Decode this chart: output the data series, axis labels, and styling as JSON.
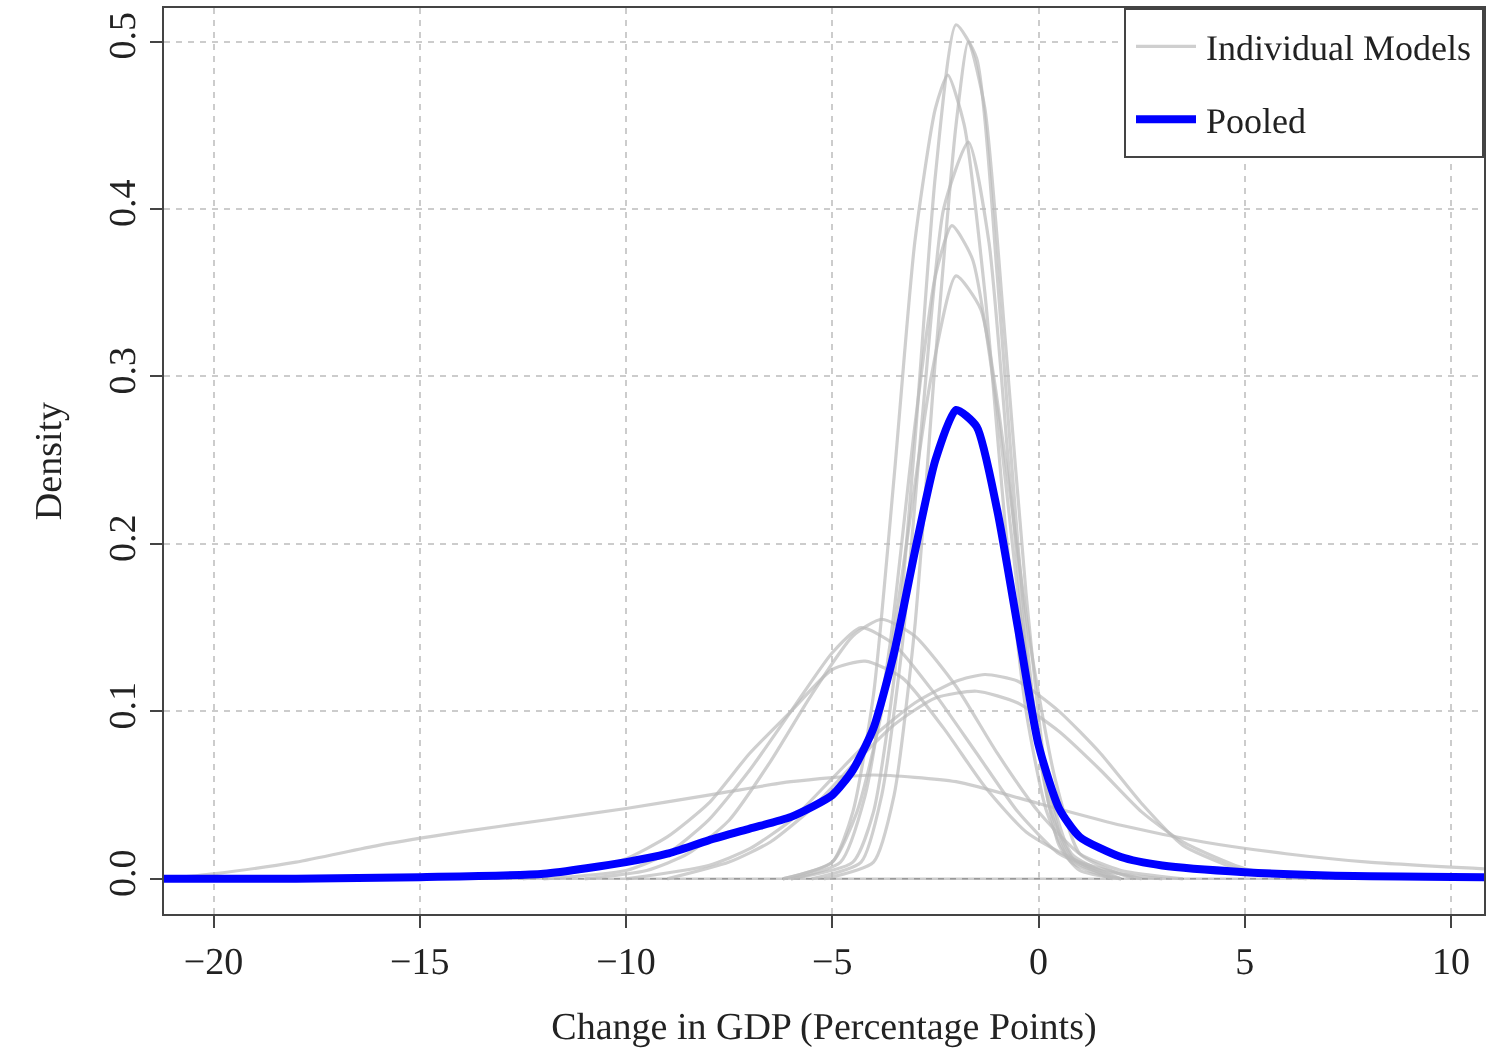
{
  "chart_data": {
    "type": "line",
    "xlabel": "Change in GDP (Percentage Points)",
    "ylabel": "Density",
    "xlim": [
      -21.2,
      10.8
    ],
    "xticks": [
      {
        "value": -20,
        "label": "−20"
      },
      {
        "value": -15,
        "label": "−15"
      },
      {
        "value": -10,
        "label": "−10"
      },
      {
        "value": -5,
        "label": "−5"
      },
      0,
      5,
      10
    ],
    "ylim": [
      -0.021,
      0.52
    ],
    "yticks": [
      {
        "value": 0,
        "label": "0.0"
      },
      0.1,
      0.2,
      0.3,
      0.4,
      0.5
    ],
    "grid": true,
    "legend": "top right",
    "marker": "none",
    "line_style": "solid",
    "ref_lines": [
      {
        "axis": "y",
        "value": 0,
        "color": "#999999"
      }
    ],
    "series": [
      {
        "name": "Individual Models",
        "color": "#bbbbbb",
        "x": [
          -6,
          -4.5,
          -4,
          -3.5,
          -3,
          -2.5,
          -2,
          -1.5,
          -1,
          -0.5,
          0,
          0.5,
          1,
          2
        ],
        "values": [
          0,
          0.01,
          0.04,
          0.12,
          0.26,
          0.42,
          0.51,
          0.49,
          0.36,
          0.2,
          0.08,
          0.02,
          0.005,
          0
        ]
      },
      {
        "color": "#bbbbbb",
        "x": [
          -6.2,
          -5,
          -4.5,
          -4,
          -3.5,
          -3,
          -2.5,
          -2.2,
          -1.8,
          -1.3,
          -0.8,
          -0.3,
          0.2,
          0.8,
          1.8
        ],
        "values": [
          0,
          0.01,
          0.04,
          0.11,
          0.24,
          0.38,
          0.46,
          0.48,
          0.45,
          0.35,
          0.21,
          0.1,
          0.04,
          0.01,
          0
        ]
      },
      {
        "color": "#bbbbbb",
        "x": [
          -5.5,
          -4.3,
          -3.8,
          -3.3,
          -2.8,
          -2.3,
          -1.7,
          -1.2,
          -0.7,
          -0.2,
          0.3,
          0.9,
          2
        ],
        "values": [
          0,
          0.01,
          0.05,
          0.14,
          0.28,
          0.4,
          0.44,
          0.38,
          0.24,
          0.11,
          0.04,
          0.01,
          0
        ]
      },
      {
        "color": "#bbbbbb",
        "x": [
          -6,
          -4.8,
          -4.2,
          -3.6,
          -3,
          -2.5,
          -2.1,
          -1.6,
          -1,
          -0.4,
          0.2,
          0.8,
          2
        ],
        "values": [
          0,
          0.01,
          0.05,
          0.14,
          0.27,
          0.36,
          0.39,
          0.37,
          0.28,
          0.15,
          0.06,
          0.015,
          0
        ]
      },
      {
        "color": "#bbbbbb",
        "x": [
          -5.2,
          -4,
          -3.5,
          -3,
          -2.5,
          -2,
          -1.7,
          -1.3,
          -0.8,
          -0.3,
          0.2,
          0.7,
          1.8
        ],
        "values": [
          0,
          0.01,
          0.05,
          0.15,
          0.31,
          0.45,
          0.5,
          0.46,
          0.32,
          0.17,
          0.06,
          0.015,
          0
        ]
      },
      {
        "color": "#bbbbbb",
        "x": [
          -6.2,
          -5,
          -4.4,
          -3.8,
          -3.2,
          -2.6,
          -2,
          -1.4,
          -0.8,
          -0.2,
          0.4,
          1,
          2.3
        ],
        "values": [
          0,
          0.01,
          0.04,
          0.1,
          0.2,
          0.3,
          0.36,
          0.34,
          0.25,
          0.14,
          0.06,
          0.015,
          0
        ]
      },
      {
        "color": "#bbbbbb",
        "x": [
          -12,
          -10,
          -9,
          -8,
          -7,
          -6,
          -5,
          -4.3,
          -3.5,
          -2.5,
          -1.5,
          -0.5,
          0.5,
          1.5,
          3
        ],
        "values": [
          0,
          0.005,
          0.015,
          0.035,
          0.065,
          0.1,
          0.135,
          0.15,
          0.14,
          0.11,
          0.075,
          0.04,
          0.015,
          0.005,
          0
        ]
      },
      {
        "color": "#bbbbbb",
        "x": [
          -11,
          -9.5,
          -8.5,
          -7.5,
          -6.5,
          -5.5,
          -4.5,
          -3.8,
          -3,
          -2,
          -1,
          0,
          1,
          2,
          3.5
        ],
        "values": [
          0,
          0.005,
          0.015,
          0.035,
          0.07,
          0.11,
          0.145,
          0.155,
          0.145,
          0.115,
          0.075,
          0.04,
          0.015,
          0.005,
          0
        ]
      },
      {
        "color": "#bbbbbb",
        "x": [
          -12.5,
          -11,
          -10,
          -9,
          -8,
          -7,
          -6,
          -5,
          -4.2,
          -3.3,
          -2.3,
          -1.3,
          -0.3,
          1,
          2.5
        ],
        "values": [
          0,
          0.005,
          0.012,
          0.025,
          0.045,
          0.075,
          0.1,
          0.125,
          0.13,
          0.12,
          0.09,
          0.055,
          0.028,
          0.01,
          0
        ]
      },
      {
        "color": "#bbbbbb",
        "x": [
          -10,
          -8,
          -7,
          -6,
          -5,
          -4,
          -3,
          -2,
          -1.3,
          -0.5,
          0.5,
          1.5,
          2.5,
          3.5,
          5
        ],
        "values": [
          0,
          0.008,
          0.018,
          0.035,
          0.06,
          0.085,
          0.105,
          0.118,
          0.122,
          0.118,
          0.1,
          0.075,
          0.045,
          0.02,
          0.004
        ]
      },
      {
        "color": "#bbbbbb",
        "x": [
          -9,
          -7.5,
          -6.5,
          -5.5,
          -4.5,
          -3.5,
          -2.5,
          -1.5,
          -0.5,
          0.5,
          1.5,
          2.5,
          3.5,
          5,
          6.5
        ],
        "values": [
          0,
          0.01,
          0.022,
          0.042,
          0.068,
          0.092,
          0.108,
          0.112,
          0.105,
          0.088,
          0.065,
          0.04,
          0.022,
          0.006,
          0
        ]
      },
      {
        "color": "#bbbbbb",
        "x": [
          -21.2,
          -20,
          -18,
          -16,
          -14,
          -12,
          -10,
          -8,
          -6,
          -4,
          -2,
          0,
          2,
          4,
          6,
          8,
          10.8
        ],
        "values": [
          0,
          0.003,
          0.01,
          0.02,
          0.028,
          0.035,
          0.042,
          0.05,
          0.058,
          0.062,
          0.058,
          0.045,
          0.032,
          0.022,
          0.015,
          0.01,
          0.006
        ]
      },
      {
        "name": "Pooled",
        "color": "#0000ff",
        "x": [
          -21.2,
          -18,
          -15,
          -12,
          -10,
          -9,
          -8,
          -7,
          -6,
          -5,
          -4.5,
          -4,
          -3.5,
          -3,
          -2.5,
          -2,
          -1.5,
          -1,
          -0.5,
          0,
          0.5,
          1,
          2,
          3,
          5,
          7,
          10.8
        ],
        "values": [
          0,
          0,
          0.001,
          0.003,
          0.01,
          0.015,
          0.023,
          0.03,
          0.037,
          0.05,
          0.065,
          0.09,
          0.135,
          0.195,
          0.25,
          0.28,
          0.27,
          0.22,
          0.15,
          0.08,
          0.042,
          0.025,
          0.013,
          0.008,
          0.004,
          0.002,
          0.001
        ]
      }
    ]
  }
}
